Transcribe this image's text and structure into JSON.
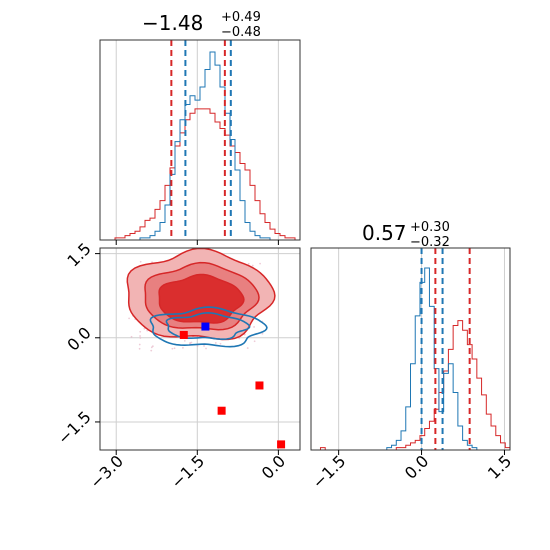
{
  "chart_data": {
    "type": "corner",
    "titles": {
      "x": {
        "value": "−1.48",
        "plus": "+0.49",
        "minus": "−0.48"
      },
      "y": {
        "value": "0.57",
        "plus": "+0.30",
        "minus": "−0.32"
      }
    },
    "x_axis": {
      "lim": [
        -3.3,
        0.4
      ],
      "ticks": [
        -3.0,
        -1.5,
        0.0
      ],
      "tick_labels": [
        "−3.0",
        "−1.5",
        "0.0"
      ]
    },
    "y_axis": {
      "lim": [
        -2.0,
        1.6
      ],
      "ticks": [
        -1.5,
        0.0,
        1.5
      ],
      "tick_labels": [
        "−1.5",
        "0.0",
        "1.5"
      ]
    },
    "grid": true,
    "colors": {
      "red": "#d62728",
      "blue": "#1f77b4",
      "marker_red": "#ff0000",
      "marker_blue": "#0000ff"
    },
    "series": [
      {
        "color": "#d62728",
        "x_quantiles": [
          -1.98,
          -1.48,
          -0.99
        ],
        "y_quantiles": [
          0.25,
          0.57,
          0.87
        ]
      },
      {
        "color": "#1f77b4",
        "x_quantiles": [
          -1.72,
          -1.33,
          -0.88
        ],
        "y_quantiles": [
          0.0,
          0.18,
          0.38
        ]
      }
    ],
    "hist_x": {
      "lim": [
        -3.3,
        0.4
      ],
      "red": [
        0,
        0,
        0,
        1,
        1,
        2,
        3,
        4,
        6,
        9,
        10,
        14,
        18,
        25,
        33,
        43,
        49,
        55,
        58,
        60,
        60,
        60,
        58,
        54,
        51,
        48,
        43,
        40,
        35,
        32,
        25,
        18,
        12,
        8,
        5,
        3,
        2,
        1,
        1,
        0
      ],
      "blue": [
        0,
        0,
        0,
        0,
        0,
        0,
        0,
        0,
        1,
        1,
        2,
        4,
        8,
        16,
        30,
        45,
        55,
        62,
        66,
        64,
        70,
        78,
        86,
        80,
        70,
        58,
        46,
        32,
        18,
        8,
        4,
        2,
        1,
        1,
        0,
        0,
        0,
        0,
        0,
        0
      ]
    },
    "hist_y": {
      "lim": [
        -2.0,
        1.6
      ],
      "red": [
        0,
        0,
        1,
        0,
        0,
        0,
        0,
        0,
        0,
        0,
        0,
        0,
        0,
        0,
        0,
        0,
        0,
        0,
        1,
        1,
        2,
        3,
        4,
        6,
        9,
        12,
        17,
        24,
        33,
        42,
        52,
        54,
        50,
        44,
        38,
        30,
        23,
        15,
        10,
        6,
        3,
        1
      ],
      "blue": [
        0,
        0,
        0,
        0,
        0,
        0,
        0,
        0,
        0,
        0,
        0,
        0,
        0,
        0,
        0,
        0,
        1,
        2,
        4,
        8,
        18,
        36,
        56,
        70,
        76,
        60,
        34,
        16,
        32,
        36,
        24,
        10,
        4,
        2,
        1,
        0,
        0,
        0,
        0,
        0,
        0,
        0
      ]
    },
    "markers": [
      {
        "x": 0.05,
        "y": -1.9,
        "color": "#ff0000"
      },
      {
        "x": -0.35,
        "y": -0.85,
        "color": "#ff0000"
      },
      {
        "x": -1.05,
        "y": -1.3,
        "color": "#ff0000"
      },
      {
        "x": -1.75,
        "y": 0.05,
        "color": "#ff0000"
      },
      {
        "x": -1.35,
        "y": 0.2,
        "color": "#0000ff"
      }
    ]
  }
}
